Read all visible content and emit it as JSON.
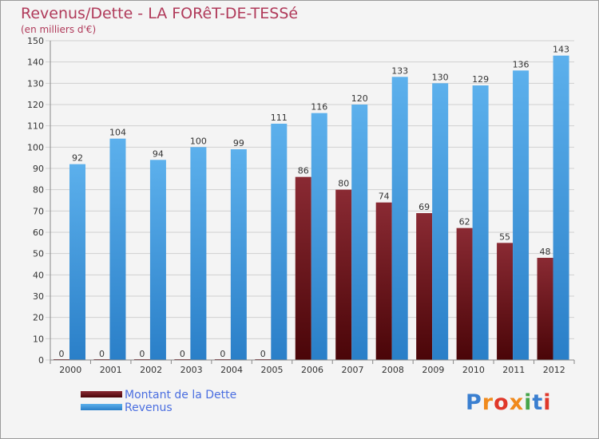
{
  "header": {
    "title": "Revenus/Dette - LA FORêT-DE-TESSé",
    "subtitle": "(en milliers d'€)"
  },
  "legend": {
    "items": [
      {
        "label": "Montant de la Dette",
        "color": "#6e0f16"
      },
      {
        "label": "Revenus",
        "color": "#3a97dc"
      }
    ]
  },
  "logo": {
    "text": "Proxiti"
  },
  "chart_data": {
    "type": "bar",
    "categories": [
      "2000",
      "2001",
      "2002",
      "2003",
      "2004",
      "2005",
      "2006",
      "2007",
      "2008",
      "2009",
      "2010",
      "2011",
      "2012"
    ],
    "series": [
      {
        "name": "Montant de la Dette",
        "color": "#6e0f16",
        "values": [
          0,
          0,
          0,
          0,
          0,
          0,
          86,
          80,
          74,
          69,
          62,
          55,
          48
        ]
      },
      {
        "name": "Revenus",
        "color": "#3a97dc",
        "values": [
          92,
          104,
          94,
          100,
          99,
          111,
          116,
          120,
          133,
          130,
          129,
          136,
          143
        ]
      }
    ],
    "ylim": [
      0,
      150
    ],
    "yticks": [
      0,
      10,
      20,
      30,
      40,
      50,
      60,
      70,
      80,
      90,
      100,
      110,
      120,
      130,
      140,
      150
    ],
    "grid": true,
    "legend_position": "bottom-left"
  }
}
